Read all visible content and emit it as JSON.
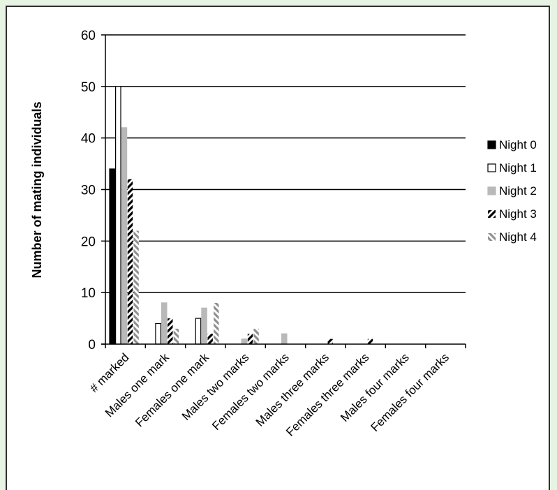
{
  "chart_data": {
    "type": "bar",
    "title": "",
    "xlabel": "",
    "ylabel": "Number of mating individuals",
    "ylim": [
      0,
      60
    ],
    "yticks": [
      0,
      10,
      20,
      30,
      40,
      50,
      60
    ],
    "grid": true,
    "legend_position": "right",
    "categories": [
      "# marked",
      "Males one mark",
      "Females one mark",
      "Males two marks",
      "Females two marks",
      "Males three marks",
      "Females three marks",
      "Males four marks",
      "Females four marks"
    ],
    "series": [
      {
        "name": "Night 0",
        "values": [
          34,
          0,
          0,
          0,
          0,
          0,
          0,
          0,
          0
        ]
      },
      {
        "name": "Night 1",
        "values": [
          50,
          4,
          5,
          0,
          0,
          0,
          0,
          0,
          0
        ]
      },
      {
        "name": "Night 2",
        "values": [
          42,
          8,
          7,
          1,
          2,
          0,
          0,
          0,
          0
        ]
      },
      {
        "name": "Night 3",
        "values": [
          32,
          5,
          2,
          2,
          0,
          1,
          1,
          0,
          0
        ]
      },
      {
        "name": "Night 4",
        "values": [
          22,
          3,
          8,
          3,
          0,
          0,
          0,
          0,
          0
        ]
      }
    ],
    "series_styles": [
      "solid-black",
      "white-outline",
      "solid-gray",
      "black-hatch",
      "gray-hatch"
    ]
  }
}
